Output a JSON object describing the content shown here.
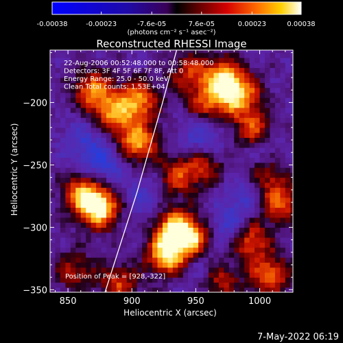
{
  "colorbar": {
    "ticks": [
      {
        "value": -0.00038,
        "label": "-0.00038"
      },
      {
        "value": -0.00023,
        "label": "-0.00023"
      },
      {
        "value": -7.6e-05,
        "label": "-7.6e-05"
      },
      {
        "value": 7.6e-05,
        "label": "7.6e-05"
      },
      {
        "value": 0.00023,
        "label": "0.00023"
      },
      {
        "value": 0.00038,
        "label": "0.00038"
      }
    ],
    "range": [
      -0.00038,
      0.00038
    ],
    "units": "(photons cm⁻² s⁻¹ asec⁻²)"
  },
  "chart_data": {
    "type": "heatmap",
    "title": "Reconstructed RHESSI Image",
    "xlabel": "Heliocentric X (arcsec)",
    "ylabel": "Heliocentric Y (arcsec)",
    "xlim": [
      836,
      1026
    ],
    "ylim": [
      -352,
      -158
    ],
    "xticks": [
      {
        "value": 850,
        "label": "850"
      },
      {
        "value": 900,
        "label": "900"
      },
      {
        "value": 950,
        "label": "950"
      },
      {
        "value": 1000,
        "label": "1000"
      }
    ],
    "yticks": [
      {
        "value": -200,
        "label": "−200"
      },
      {
        "value": -250,
        "label": "−250"
      },
      {
        "value": -300,
        "label": "−300"
      },
      {
        "value": -350,
        "label": "−350"
      }
    ],
    "annotations": [
      "22-Aug-2006 00:52:48.000 to 00:58:48.000",
      "Detectors: 3F 4F 5F 6F 7F 8F, Att 0",
      "Energy Range: 25.0 - 50.0 keV",
      "Clean    Total counts: 1.53E+04"
    ],
    "peak_label": "Position of Peak = [928,-322]",
    "limb_line": [
      [
        879,
        -352
      ],
      [
        904,
        -272
      ],
      [
        924,
        -200
      ],
      [
        935,
        -158
      ]
    ],
    "hotspots": [
      {
        "x": 875,
        "y": -285,
        "intensity": 0.98
      },
      {
        "x": 862,
        "y": -273,
        "intensity": 0.8
      },
      {
        "x": 870,
        "y": -190,
        "intensity": 0.75
      },
      {
        "x": 886,
        "y": -210,
        "intensity": 0.7
      },
      {
        "x": 905,
        "y": -198,
        "intensity": 0.78
      },
      {
        "x": 905,
        "y": -232,
        "intensity": 0.85
      },
      {
        "x": 935,
        "y": -260,
        "intensity": 0.55
      },
      {
        "x": 928,
        "y": -322,
        "intensity": 1.0
      },
      {
        "x": 933,
        "y": -300,
        "intensity": 0.85
      },
      {
        "x": 948,
        "y": -308,
        "intensity": 0.75
      },
      {
        "x": 955,
        "y": -250,
        "intensity": 0.5
      },
      {
        "x": 972,
        "y": -180,
        "intensity": 0.85
      },
      {
        "x": 985,
        "y": -195,
        "intensity": 0.8
      },
      {
        "x": 960,
        "y": -200,
        "intensity": 0.6
      },
      {
        "x": 995,
        "y": -222,
        "intensity": 0.65
      },
      {
        "x": 1005,
        "y": -255,
        "intensity": 0.6
      },
      {
        "x": 1015,
        "y": -280,
        "intensity": 0.7
      },
      {
        "x": 992,
        "y": -310,
        "intensity": 0.7
      },
      {
        "x": 1008,
        "y": -338,
        "intensity": 0.7
      },
      {
        "x": 968,
        "y": -342,
        "intensity": 0.55
      },
      {
        "x": 890,
        "y": -345,
        "intensity": 0.55
      },
      {
        "x": 855,
        "y": -335,
        "intensity": 0.45
      },
      {
        "x": 945,
        "y": -175,
        "intensity": 0.5
      }
    ],
    "coldspots": [
      {
        "x": 878,
        "y": -248,
        "intensity": 0.6
      },
      {
        "x": 955,
        "y": -228,
        "intensity": 0.55
      },
      {
        "x": 975,
        "y": -300,
        "intensity": 0.6
      },
      {
        "x": 1002,
        "y": -242,
        "intensity": 0.55
      },
      {
        "x": 862,
        "y": -230,
        "intensity": 0.45
      },
      {
        "x": 910,
        "y": -275,
        "intensity": 0.4
      },
      {
        "x": 990,
        "y": -275,
        "intensity": 0.45
      },
      {
        "x": 955,
        "y": -335,
        "intensity": 0.4
      }
    ]
  },
  "footer": {
    "date": "7-May-2022 06:19"
  }
}
